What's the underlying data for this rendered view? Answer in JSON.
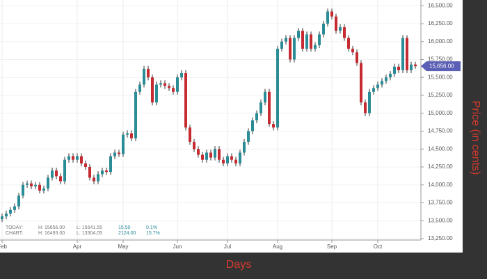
{
  "chart_data": {
    "type": "candlestick",
    "y_axis_label": "Price (in cents)",
    "x_axis_label": "Days",
    "up_color": "#2a8c97",
    "down_color": "#c62b32",
    "grid": true,
    "ylim": [
      13230,
      16580
    ],
    "yticks": [
      {
        "value": 13250,
        "label": "13,250.00"
      },
      {
        "value": 13500,
        "label": "13,500.00"
      },
      {
        "value": 13750,
        "label": "13,750.00"
      },
      {
        "value": 14000,
        "label": "14,000.00"
      },
      {
        "value": 14250,
        "label": "14,250.00"
      },
      {
        "value": 14500,
        "label": "14,500.00"
      },
      {
        "value": 14750,
        "label": "14,750.00"
      },
      {
        "value": 15000,
        "label": "15,000.00"
      },
      {
        "value": 15250,
        "label": "15,250.00"
      },
      {
        "value": 15500,
        "label": "15,500.00"
      },
      {
        "value": 15750,
        "label": "15,750.00"
      },
      {
        "value": 16000,
        "label": "16,000.00"
      },
      {
        "value": 16250,
        "label": "16,250.00"
      },
      {
        "value": 16500,
        "label": "16,500.00"
      }
    ],
    "xticks": [
      {
        "value": 0,
        "label": "Feb"
      },
      {
        "value": 18,
        "label": "Apr"
      },
      {
        "value": 29,
        "label": "May"
      },
      {
        "value": 42,
        "label": "Jun"
      },
      {
        "value": 54,
        "label": "Jul"
      },
      {
        "value": 66,
        "label": "Aug"
      },
      {
        "value": 79,
        "label": "Sep"
      },
      {
        "value": 90,
        "label": "Oct"
      }
    ],
    "last_price": {
      "value": 15656,
      "label": "15,656.00"
    },
    "stats": [
      [
        "TODAY:",
        "H: 15656.00",
        "L: 15641.55",
        "15.50",
        "0.1%"
      ],
      [
        "CHART:",
        "H: 16493.00",
        "L: 13304.05",
        "2124.00",
        "15.7%"
      ]
    ],
    "ohlc": [
      [
        13520,
        13600,
        13480,
        13560
      ],
      [
        13560,
        13640,
        13520,
        13600
      ],
      [
        13600,
        13690,
        13560,
        13650
      ],
      [
        13650,
        13740,
        13610,
        13700
      ],
      [
        13700,
        13890,
        13660,
        13850
      ],
      [
        13850,
        14040,
        13810,
        14000
      ],
      [
        14000,
        14060,
        13960,
        14020
      ],
      [
        14020,
        14060,
        13940,
        13980
      ],
      [
        13980,
        14040,
        13940,
        14000
      ],
      [
        14000,
        14040,
        13880,
        13920
      ],
      [
        13920,
        13990,
        13880,
        13950
      ],
      [
        13950,
        14140,
        13910,
        14100
      ],
      [
        14100,
        14240,
        14060,
        14200
      ],
      [
        14200,
        14240,
        14080,
        14120
      ],
      [
        14120,
        14160,
        14010,
        14050
      ],
      [
        14050,
        14390,
        14010,
        14350
      ],
      [
        14350,
        14440,
        14310,
        14400
      ],
      [
        14400,
        14440,
        14310,
        14350
      ],
      [
        14350,
        14440,
        14310,
        14400
      ],
      [
        14400,
        14440,
        14260,
        14300
      ],
      [
        14300,
        14340,
        14210,
        14250
      ],
      [
        14250,
        14290,
        14060,
        14100
      ],
      [
        14100,
        14140,
        14010,
        14050
      ],
      [
        14050,
        14190,
        14010,
        14150
      ],
      [
        14150,
        14240,
        14110,
        14200
      ],
      [
        14200,
        14240,
        14140,
        14180
      ],
      [
        14180,
        14440,
        14140,
        14400
      ],
      [
        14400,
        14490,
        14360,
        14450
      ],
      [
        14450,
        14490,
        14390,
        14430
      ],
      [
        14430,
        14740,
        14390,
        14700
      ],
      [
        14700,
        14760,
        14660,
        14720
      ],
      [
        14720,
        14760,
        14610,
        14650
      ],
      [
        14650,
        15340,
        14610,
        15300
      ],
      [
        15300,
        15440,
        15260,
        15400
      ],
      [
        15400,
        15660,
        15360,
        15620
      ],
      [
        15620,
        15660,
        15460,
        15500
      ],
      [
        15500,
        15540,
        15110,
        15150
      ],
      [
        15150,
        15440,
        15110,
        15400
      ],
      [
        15400,
        15460,
        15360,
        15420
      ],
      [
        15420,
        15460,
        15340,
        15380
      ],
      [
        15380,
        15420,
        15310,
        15350
      ],
      [
        15350,
        15390,
        15260,
        15300
      ],
      [
        15300,
        15540,
        15260,
        15500
      ],
      [
        15500,
        15600,
        15460,
        15560
      ],
      [
        15560,
        15600,
        14760,
        14800
      ],
      [
        14800,
        14840,
        14560,
        14600
      ],
      [
        14600,
        14640,
        14460,
        14500
      ],
      [
        14500,
        14540,
        14380,
        14420
      ],
      [
        14420,
        14460,
        14310,
        14350
      ],
      [
        14350,
        14490,
        14310,
        14450
      ],
      [
        14450,
        14490,
        14340,
        14380
      ],
      [
        14380,
        14540,
        14340,
        14500
      ],
      [
        14500,
        14540,
        14310,
        14350
      ],
      [
        14350,
        14390,
        14260,
        14300
      ],
      [
        14300,
        14440,
        14260,
        14400
      ],
      [
        14400,
        14440,
        14310,
        14350
      ],
      [
        14350,
        14390,
        14260,
        14300
      ],
      [
        14300,
        14490,
        14260,
        14450
      ],
      [
        14450,
        14640,
        14410,
        14600
      ],
      [
        14600,
        14790,
        14560,
        14750
      ],
      [
        14750,
        14940,
        14710,
        14900
      ],
      [
        14900,
        15040,
        14860,
        15000
      ],
      [
        15000,
        15190,
        14960,
        15150
      ],
      [
        15150,
        15340,
        15110,
        15300
      ],
      [
        15300,
        15340,
        14810,
        14850
      ],
      [
        14850,
        14890,
        14760,
        14800
      ],
      [
        14800,
        15940,
        14760,
        15900
      ],
      [
        15900,
        16040,
        15860,
        16000
      ],
      [
        16000,
        16090,
        15960,
        16050
      ],
      [
        16050,
        16090,
        15710,
        15750
      ],
      [
        15750,
        16090,
        15710,
        16050
      ],
      [
        16050,
        16190,
        16010,
        16150
      ],
      [
        16150,
        16190,
        15860,
        15900
      ],
      [
        15900,
        16140,
        15860,
        16100
      ],
      [
        16100,
        16140,
        15860,
        15900
      ],
      [
        15900,
        15990,
        15860,
        15950
      ],
      [
        15950,
        16140,
        15910,
        16100
      ],
      [
        16100,
        16290,
        16060,
        16250
      ],
      [
        16250,
        16460,
        16210,
        16420
      ],
      [
        16420,
        16460,
        16310,
        16350
      ],
      [
        16350,
        16390,
        16110,
        16150
      ],
      [
        16150,
        16240,
        16110,
        16200
      ],
      [
        16200,
        16240,
        16010,
        16050
      ],
      [
        16050,
        16090,
        15860,
        15900
      ],
      [
        15900,
        15940,
        15810,
        15850
      ],
      [
        15850,
        15890,
        15660,
        15700
      ],
      [
        15700,
        15740,
        15110,
        15150
      ],
      [
        15150,
        15190,
        14960,
        15000
      ],
      [
        15000,
        15340,
        14960,
        15300
      ],
      [
        15300,
        15390,
        15260,
        15350
      ],
      [
        15350,
        15440,
        15310,
        15400
      ],
      [
        15400,
        15490,
        15360,
        15450
      ],
      [
        15450,
        15540,
        15410,
        15500
      ],
      [
        15500,
        15590,
        15460,
        15550
      ],
      [
        15550,
        15690,
        15510,
        15650
      ],
      [
        15650,
        15690,
        15560,
        15600
      ],
      [
        15600,
        16090,
        15560,
        16050
      ],
      [
        16050,
        16090,
        15560,
        15600
      ],
      [
        15600,
        15720,
        15560,
        15680
      ],
      [
        15680,
        15720,
        15620,
        15656
      ]
    ]
  }
}
